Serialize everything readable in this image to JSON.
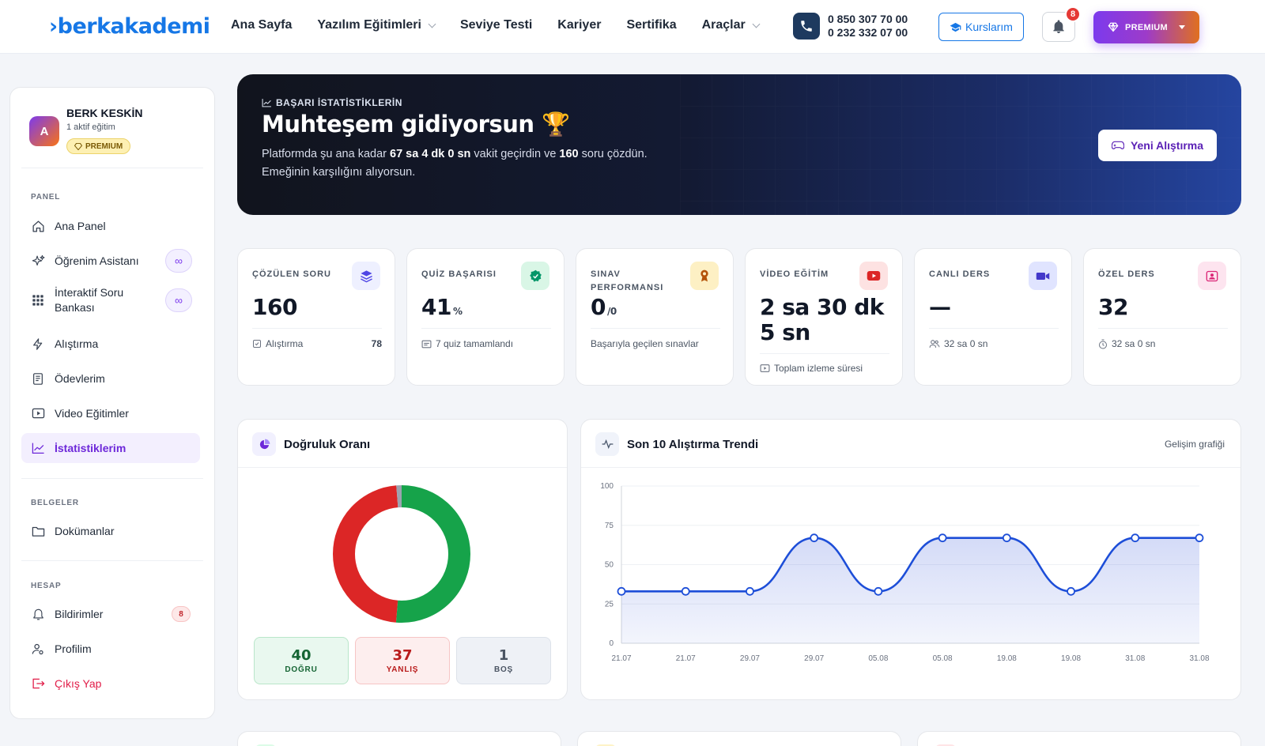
{
  "header": {
    "logo": "›berkakademi",
    "nav": [
      {
        "label": "Ana Sayfa",
        "dropdown": false
      },
      {
        "label": "Yazılım Eğitimleri",
        "dropdown": true
      },
      {
        "label": "Seviye Testi",
        "dropdown": false
      },
      {
        "label": "Kariyer",
        "dropdown": false
      },
      {
        "label": "Sertifika",
        "dropdown": false
      },
      {
        "label": "Araçlar",
        "dropdown": true
      }
    ],
    "phone_1": "0 850 307 70 00",
    "phone_2": "0 232 332 07 00",
    "courses_button": "Kurslarım",
    "notification_count": "8",
    "premium_button": "PREMIUM"
  },
  "sidebar": {
    "user": {
      "initial": "A",
      "name": "BERK KESKİN",
      "subtitle": "1 aktif eğitim",
      "badge": "PREMIUM"
    },
    "sections": {
      "panel": "PANEL",
      "documents": "BELGELER",
      "account": "HESAP"
    },
    "items": {
      "dashboard": "Ana Panel",
      "assistant": "Öğrenim Asistanı",
      "question_bank": "İnteraktif Soru Bankası",
      "practice": "Alıştırma",
      "homework": "Ödevlerim",
      "videos": "Video Eğitimler",
      "statistics": "İstatistiklerim",
      "documents": "Dokümanlar",
      "notifications": "Bildirimler",
      "notifications_count": "8",
      "profile": "Profilim",
      "logout": "Çıkış Yap",
      "infinity": "∞"
    }
  },
  "hero": {
    "eyebrow": "BAŞARI İSTATİSTİKLERİN",
    "title": "Muhteşem gidiyorsun 🏆",
    "text_1": "Platformda şu ana kadar ",
    "time": "67 sa 4 dk 0 sn",
    "text_2": " vakit geçirdin ve ",
    "questions": "160",
    "text_3": " soru çözdün.",
    "text_4": "Emeğinin karşılığını alıyorsun.",
    "button": "Yeni Alıştırma"
  },
  "stats": [
    {
      "label": "ÇÖZÜLEN SORU",
      "value": "160",
      "unit": "",
      "foot": "Alıştırma",
      "foot_value": "78",
      "icon": "layers-icon",
      "color": "#4f46e5",
      "bg": "#eef0ff"
    },
    {
      "label": "QUİZ BAŞARISI",
      "value": "41",
      "unit": "%",
      "foot": "7 quiz tamamlandı",
      "foot_value": "",
      "icon": "badge-check-icon",
      "color": "#059669",
      "bg": "#d9f6e6"
    },
    {
      "label": "SINAV PERFORMANSI",
      "value": "0",
      "unit": "/0",
      "foot": "Başarıyla geçilen sınavlar",
      "foot_value": "",
      "icon": "medal-icon",
      "color": "#b45309",
      "bg": "#fdf0c4"
    },
    {
      "label": "VİDEO EĞİTİM",
      "value": "2 sa 30 dk 5 sn",
      "unit": "",
      "foot": "Toplam izleme süresi",
      "foot_value": "",
      "icon": "youtube-icon",
      "color": "#dc2626",
      "bg": "#fde2e2"
    },
    {
      "label": "CANLI DERS",
      "value": "—",
      "unit": "",
      "foot": "32 sa 0 sn",
      "foot_value": "",
      "icon": "video-camera-icon",
      "color": "#4338ca",
      "bg": "#e0e4ff"
    },
    {
      "label": "ÖZEL DERS",
      "value": "32",
      "unit": "",
      "foot": "32 sa 0 sn",
      "foot_value": "",
      "icon": "person-frame-icon",
      "color": "#db2777",
      "bg": "#fde4ef"
    }
  ],
  "accuracy": {
    "title": "Doğruluk Oranı",
    "correct": {
      "value": 40,
      "label": "DOĞRU",
      "color": "#16a34a"
    },
    "wrong": {
      "value": 37,
      "label": "YANLIŞ",
      "color": "#dc2626"
    },
    "empty": {
      "value": 1,
      "label": "BOŞ",
      "color": "#9ca3af"
    }
  },
  "trend": {
    "title": "Son 10 Alıştırma Trendi",
    "link": "Gelişim grafiği"
  },
  "chart_data": [
    {
      "type": "pie",
      "title": "Doğruluk Oranı",
      "categories": [
        "DOĞRU",
        "YANLIŞ",
        "BOŞ"
      ],
      "values": [
        40,
        37,
        1
      ]
    },
    {
      "type": "area",
      "title": "Son 10 Alıştırma Trendi",
      "categories": [
        "21.07",
        "21.07",
        "29.07",
        "29.07",
        "05.08",
        "05.08",
        "19.08",
        "19.08",
        "31.08",
        "31.08"
      ],
      "values": [
        33,
        33,
        33,
        67,
        33,
        67,
        67,
        33,
        67,
        67
      ],
      "ylim": [
        0,
        100
      ],
      "yticks": [
        0,
        25,
        50,
        75,
        100
      ],
      "grid": true,
      "color": "#1d4ed8"
    }
  ]
}
